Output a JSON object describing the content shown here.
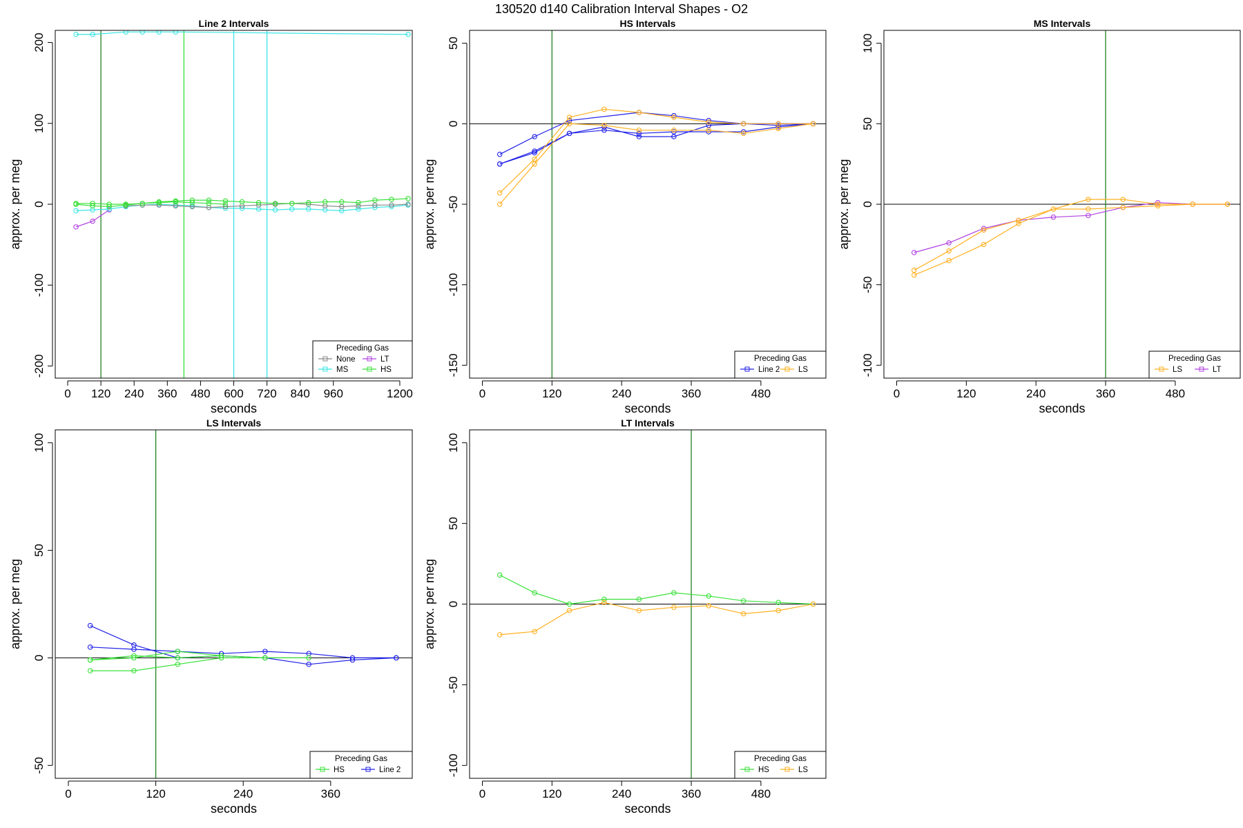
{
  "figure_title": "130520   d140   Calibration Interval Shapes - O2",
  "colors": {
    "None": "#888888",
    "LT": "#b040e0",
    "MS": "#38e4e4",
    "HS": "#38e038",
    "LS": "#ffb020",
    "Line 2": "#2020e8",
    "vline": "#208020",
    "zero": "#000000"
  },
  "chart_data": [
    {
      "type": "line",
      "title": "Line 2 Intervals",
      "xlabel": "seconds",
      "ylabel": "approx. per meg",
      "xlim": [
        -45,
        1245
      ],
      "ylim": [
        -215,
        215
      ],
      "xticks": [
        0,
        120,
        240,
        360,
        480,
        600,
        720,
        840,
        960,
        1200
      ],
      "yticks": [
        -200,
        -100,
        0,
        100,
        200
      ],
      "zero_line": false,
      "vlines": [
        {
          "x": 120,
          "color_key": "vline"
        },
        {
          "x": 420,
          "color_key": "HS"
        },
        {
          "x": 600,
          "color_key": "MS"
        },
        {
          "x": 720,
          "color_key": "MS"
        }
      ],
      "legend": {
        "title": "Preceding Gas",
        "position": "bottom-right",
        "ncol": 2,
        "entries": [
          "None",
          "LT",
          "MS",
          "HS"
        ]
      },
      "series": [
        {
          "name": "LT",
          "color_key": "LT",
          "x": [
            30,
            90,
            150
          ],
          "y": [
            -28,
            -21,
            -7
          ]
        },
        {
          "name": "MS",
          "color_key": "MS",
          "x": [
            30,
            90,
            210,
            270,
            330,
            390,
            1230
          ],
          "y": [
            210,
            210,
            213,
            213,
            213,
            213,
            210
          ]
        },
        {
          "name": "MS",
          "color_key": "MS",
          "x": [
            30,
            90,
            150,
            210,
            270,
            330,
            390,
            450,
            510,
            570,
            630,
            690,
            750,
            810,
            870,
            930,
            990,
            1050,
            1110,
            1170,
            1230
          ],
          "y": [
            -8,
            -7,
            -6,
            -3,
            -1,
            0,
            -1,
            -2,
            -4,
            -5,
            -5,
            -6,
            -7,
            -6,
            -6,
            -7,
            -8,
            -6,
            -4,
            -3,
            -1
          ]
        },
        {
          "name": "None",
          "color_key": "None",
          "x": [
            210,
            270,
            330,
            390,
            450,
            510,
            570,
            630,
            690,
            750,
            810,
            870,
            930,
            990,
            1050,
            1110,
            1170,
            1230
          ],
          "y": [
            -2,
            -1,
            -1,
            -2,
            -3,
            -4,
            -3,
            -2,
            -1,
            0,
            1,
            0,
            -2,
            -3,
            -2,
            -1,
            -1,
            0
          ]
        },
        {
          "name": "HS",
          "color_key": "HS",
          "x": [
            30,
            90,
            150,
            210,
            270,
            330,
            390,
            450,
            510,
            570,
            630,
            690,
            750,
            810,
            870,
            930,
            990,
            1050,
            1110,
            1170,
            1230
          ],
          "y": [
            1,
            1,
            0,
            0,
            1,
            3,
            4,
            5,
            5,
            4,
            3,
            2,
            1,
            1,
            2,
            3,
            3,
            2,
            5,
            6,
            7
          ]
        },
        {
          "name": "HS",
          "color_key": "HS",
          "x": [
            30,
            90,
            150,
            210,
            270,
            330,
            390,
            450,
            510,
            570
          ],
          "y": [
            0,
            -2,
            -3,
            -1,
            1,
            2,
            3,
            2,
            1,
            0
          ]
        }
      ]
    },
    {
      "type": "line",
      "title": "HS Intervals",
      "xlabel": "seconds",
      "ylabel": "approx. per meg",
      "xlim": [
        -22,
        592
      ],
      "ylim": [
        -158,
        58
      ],
      "xticks": [
        0,
        120,
        240,
        360,
        480
      ],
      "yticks": [
        -150,
        -100,
        -50,
        0,
        50
      ],
      "zero_line": true,
      "vlines": [
        {
          "x": 120,
          "color_key": "vline"
        }
      ],
      "legend": {
        "title": "Preceding Gas",
        "position": "bottom-right",
        "ncol": 2,
        "entries": [
          "Line 2",
          "LS"
        ]
      },
      "series": [
        {
          "name": "Line 2",
          "color_key": "Line 2",
          "x": [
            30,
            90,
            150,
            270,
            330,
            390,
            450,
            510,
            570
          ],
          "y": [
            -19,
            -8,
            2,
            7,
            5,
            2,
            0,
            0,
            0
          ]
        },
        {
          "name": "Line 2",
          "color_key": "Line 2",
          "x": [
            30,
            90,
            150,
            210,
            270,
            330,
            390,
            450,
            510,
            570
          ],
          "y": [
            -25,
            -17,
            -6,
            -4,
            -6,
            -5,
            -5,
            -5,
            -2,
            0
          ]
        },
        {
          "name": "Line 2",
          "color_key": "Line 2",
          "x": [
            30,
            90,
            150,
            210,
            270,
            330,
            390,
            450,
            510,
            570
          ],
          "y": [
            -25,
            -18,
            -6,
            -2,
            -8,
            -8,
            -1,
            0,
            -1,
            0
          ]
        },
        {
          "name": "LS",
          "color_key": "LS",
          "x": [
            30,
            90,
            150,
            210,
            270,
            330,
            390,
            450,
            510,
            570
          ],
          "y": [
            -43,
            -22,
            4,
            9,
            7,
            4,
            1,
            0,
            0,
            0
          ]
        },
        {
          "name": "LS",
          "color_key": "LS",
          "x": [
            30,
            90,
            150,
            210,
            270,
            330,
            390,
            450,
            510,
            570
          ],
          "y": [
            -50,
            -25,
            0,
            -1,
            -4,
            -4,
            -4,
            -6,
            -3,
            0
          ]
        }
      ]
    },
    {
      "type": "line",
      "title": "MS Intervals",
      "xlabel": "seconds",
      "ylabel": "approx. per meg",
      "xlim": [
        -22,
        592
      ],
      "ylim": [
        -108,
        108
      ],
      "xticks": [
        0,
        120,
        240,
        360,
        480
      ],
      "yticks": [
        -100,
        -50,
        0,
        50,
        100
      ],
      "zero_line": true,
      "vlines": [
        {
          "x": 360,
          "color_key": "vline"
        }
      ],
      "legend": {
        "title": "Preceding Gas",
        "position": "bottom-right",
        "ncol": 2,
        "entries": [
          "LS",
          "LT"
        ]
      },
      "series": [
        {
          "name": "LT",
          "color_key": "LT",
          "x": [
            30,
            90,
            150,
            210,
            270,
            330,
            390,
            450,
            510,
            570
          ],
          "y": [
            -30,
            -24,
            -15,
            -10,
            -8,
            -7,
            -2,
            1,
            0,
            0
          ]
        },
        {
          "name": "LS",
          "color_key": "LS",
          "x": [
            30,
            90,
            150,
            210,
            270,
            330,
            390,
            450,
            510,
            570
          ],
          "y": [
            -41,
            -29,
            -16,
            -10,
            -3,
            3,
            3,
            0,
            0,
            0
          ]
        },
        {
          "name": "LS",
          "color_key": "LS",
          "x": [
            30,
            90,
            150,
            210,
            270,
            330,
            390,
            450,
            510,
            570
          ],
          "y": [
            -44,
            -35,
            -25,
            -12,
            -3,
            -3,
            -2,
            -1,
            0,
            0
          ]
        }
      ]
    },
    {
      "type": "line",
      "title": "LS Intervals",
      "xlabel": "seconds",
      "ylabel": "approx. per meg",
      "xlim": [
        -18,
        472
      ],
      "ylim": [
        -56,
        106
      ],
      "xticks": [
        0,
        120,
        240,
        360
      ],
      "yticks": [
        -50,
        0,
        50,
        100
      ],
      "zero_line": true,
      "vlines": [
        {
          "x": 120,
          "color_key": "vline"
        }
      ],
      "legend": {
        "title": "Preceding Gas",
        "position": "bottom-right",
        "ncol": 2,
        "entries": [
          "HS",
          "Line 2"
        ]
      },
      "series": [
        {
          "name": "Line 2",
          "color_key": "Line 2",
          "x": [
            30,
            90,
            150,
            210,
            270,
            330,
            390,
            450
          ],
          "y": [
            15,
            6,
            0,
            1,
            0,
            -3,
            -1,
            0
          ]
        },
        {
          "name": "Line 2",
          "color_key": "Line 2",
          "x": [
            30,
            90,
            150,
            210,
            270,
            330,
            390,
            450
          ],
          "y": [
            5,
            4,
            3,
            2,
            3,
            2,
            0,
            0
          ]
        },
        {
          "name": "HS",
          "color_key": "HS",
          "x": [
            30,
            90,
            150,
            210,
            270,
            330
          ],
          "y": [
            -6,
            -6,
            -3,
            0,
            0,
            0
          ]
        },
        {
          "name": "HS",
          "color_key": "HS",
          "x": [
            30,
            90,
            150,
            210,
            270
          ],
          "y": [
            -1,
            0,
            3,
            1,
            0
          ]
        },
        {
          "name": "HS",
          "color_key": "HS",
          "x": [
            30,
            90,
            150,
            210
          ],
          "y": [
            -1,
            1,
            0,
            1
          ]
        }
      ]
    },
    {
      "type": "line",
      "title": "LT Intervals",
      "xlabel": "seconds",
      "ylabel": "approx. per meg",
      "xlim": [
        -22,
        592
      ],
      "ylim": [
        -108,
        108
      ],
      "xticks": [
        0,
        120,
        240,
        360,
        480
      ],
      "yticks": [
        -100,
        -50,
        0,
        50,
        100
      ],
      "zero_line": true,
      "vlines": [
        {
          "x": 360,
          "color_key": "vline"
        }
      ],
      "legend": {
        "title": "Preceding Gas",
        "position": "bottom-right",
        "ncol": 2,
        "entries": [
          "HS",
          "LS"
        ]
      },
      "series": [
        {
          "name": "HS",
          "color_key": "HS",
          "x": [
            30,
            90,
            150,
            210,
            270,
            330,
            390,
            450,
            510,
            570
          ],
          "y": [
            18,
            7,
            0,
            3,
            3,
            7,
            5,
            2,
            1,
            0
          ]
        },
        {
          "name": "LS",
          "color_key": "LS",
          "x": [
            30,
            90,
            150,
            210,
            270,
            330,
            390,
            450,
            510,
            570
          ],
          "y": [
            -19,
            -17,
            -4,
            1,
            -4,
            -2,
            -1,
            -6,
            -4,
            0
          ]
        }
      ]
    }
  ]
}
